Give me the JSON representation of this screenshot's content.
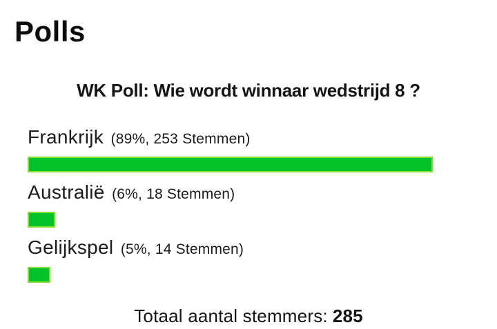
{
  "page_title": "Polls",
  "poll": {
    "question": "WK Poll: Wie wordt winnaar wedstrijd 8 ?",
    "options": [
      {
        "name": "Frankrijk",
        "detail": "(89%, 253 Stemmen)",
        "percent": 89,
        "votes": 253
      },
      {
        "name": "Australië",
        "detail": "(6%, 18 Stemmen)",
        "percent": 6,
        "votes": 18
      },
      {
        "name": "Gelijkspel",
        "detail": "(5%, 14 Stemmen)",
        "percent": 5,
        "votes": 14
      }
    ],
    "total_label": "Totaal aantal stemmers:",
    "total_value": "285"
  },
  "colors": {
    "bar_fill": "#04c32b",
    "bar_border": "#86df2e",
    "text": "#111111",
    "background": "#ffffff"
  },
  "chart_data": {
    "type": "bar",
    "title": "WK Poll: Wie wordt winnaar wedstrijd 8 ?",
    "categories": [
      "Frankrijk",
      "Australië",
      "Gelijkspel"
    ],
    "values": [
      89,
      6,
      5
    ],
    "votes": [
      253,
      18,
      14
    ],
    "total_votes": 285,
    "value_unit": "%",
    "xlabel": "",
    "ylabel": "",
    "orientation": "horizontal",
    "xlim": [
      0,
      100
    ],
    "grid": false,
    "legend": false
  }
}
